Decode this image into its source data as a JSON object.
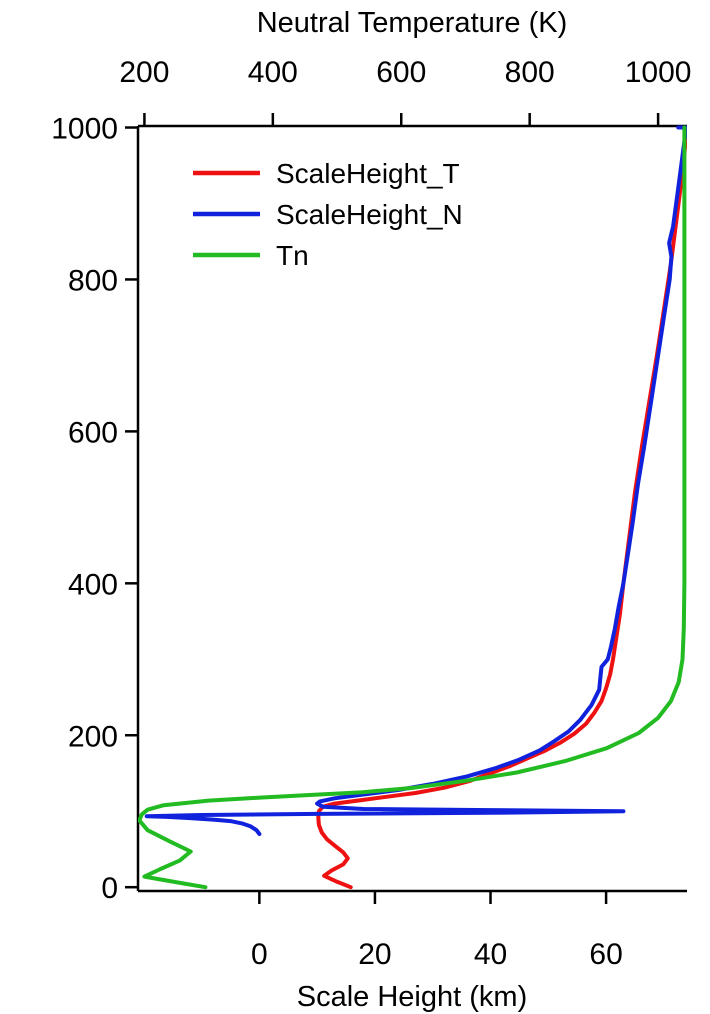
{
  "chart_data": {
    "type": "line",
    "title": "",
    "top_axis": {
      "label": "Neutral Temperature (K)",
      "range": [
        190,
        1045
      ],
      "ticks": [
        200,
        400,
        600,
        800,
        1000
      ]
    },
    "bottom_axis": {
      "label": "Scale Height (km)",
      "range": [
        -21,
        74
      ],
      "ticks": [
        0,
        20,
        40,
        60
      ]
    },
    "left_axis": {
      "label": "",
      "range": [
        -5,
        1002
      ],
      "ticks": [
        0,
        200,
        400,
        600,
        800,
        1000
      ]
    },
    "grid": false,
    "legend": {
      "position": "top-left"
    },
    "series": [
      {
        "name": "ScaleHeight_T",
        "color": "#ee1111",
        "x_axis": "bottom",
        "points": [
          [
            15.8,
            0
          ],
          [
            13.5,
            7
          ],
          [
            11.2,
            15
          ],
          [
            12.5,
            22
          ],
          [
            14.5,
            30
          ],
          [
            15.3,
            38
          ],
          [
            14.5,
            46
          ],
          [
            13.0,
            55
          ],
          [
            11.7,
            63
          ],
          [
            10.8,
            72
          ],
          [
            10.3,
            82
          ],
          [
            10.2,
            92
          ],
          [
            10.3,
            100
          ],
          [
            11.0,
            106
          ],
          [
            13.0,
            110
          ],
          [
            17.0,
            114
          ],
          [
            22.0,
            119
          ],
          [
            27.0,
            124
          ],
          [
            32.0,
            131
          ],
          [
            36.5,
            140
          ],
          [
            40.0,
            150
          ],
          [
            43.5,
            160
          ],
          [
            46.5,
            170
          ],
          [
            49.5,
            180
          ],
          [
            52.0,
            190
          ],
          [
            54.5,
            202
          ],
          [
            56.5,
            215
          ],
          [
            58.0,
            230
          ],
          [
            59.2,
            245
          ],
          [
            60.0,
            262
          ],
          [
            60.7,
            280
          ],
          [
            61.2,
            300
          ],
          [
            61.8,
            330
          ],
          [
            62.4,
            360
          ],
          [
            63.0,
            400
          ],
          [
            64.0,
            460
          ],
          [
            65.0,
            520
          ],
          [
            66.2,
            580
          ],
          [
            67.5,
            640
          ],
          [
            68.8,
            700
          ],
          [
            70.0,
            760
          ],
          [
            71.2,
            820
          ],
          [
            72.2,
            880
          ],
          [
            73.2,
            940
          ],
          [
            74.0,
            1000
          ]
        ]
      },
      {
        "name": "ScaleHeight_N",
        "color": "#1122dd",
        "x_axis": "bottom",
        "points": [
          [
            0,
            70
          ],
          [
            -0.5,
            75
          ],
          [
            -1.5,
            80
          ],
          [
            -3,
            84
          ],
          [
            -5,
            87
          ],
          [
            -8,
            89
          ],
          [
            -12,
            91
          ],
          [
            -16,
            92.5
          ],
          [
            -19.5,
            93.5
          ],
          [
            -10,
            95
          ],
          [
            10,
            96.5
          ],
          [
            40,
            98
          ],
          [
            63,
            100
          ],
          [
            40,
            101.5
          ],
          [
            18,
            103
          ],
          [
            11,
            106
          ],
          [
            10,
            110
          ],
          [
            10.5,
            113
          ],
          [
            13,
            117
          ],
          [
            18,
            122
          ],
          [
            24,
            128
          ],
          [
            30,
            136
          ],
          [
            36,
            146
          ],
          [
            41,
            157
          ],
          [
            45,
            168
          ],
          [
            48.5,
            180
          ],
          [
            51,
            192
          ],
          [
            53.5,
            205
          ],
          [
            55.5,
            220
          ],
          [
            57.5,
            240
          ],
          [
            58.8,
            260
          ],
          [
            59,
            275
          ],
          [
            59.2,
            290
          ],
          [
            60.3,
            300
          ],
          [
            60.8,
            315
          ],
          [
            61.5,
            340
          ],
          [
            62.2,
            370
          ],
          [
            63.0,
            400
          ],
          [
            63.8,
            440
          ],
          [
            64.6,
            480
          ],
          [
            65.5,
            530
          ],
          [
            66.6,
            580
          ],
          [
            67.8,
            640
          ],
          [
            69.0,
            700
          ],
          [
            70.2,
            760
          ],
          [
            71.0,
            800
          ],
          [
            71.3,
            830
          ],
          [
            70.9,
            848
          ],
          [
            71.6,
            870
          ],
          [
            72.3,
            910
          ],
          [
            73.0,
            950
          ],
          [
            73.6,
            985
          ],
          [
            74,
            1000
          ],
          [
            72.5,
            1000
          ]
        ]
      },
      {
        "name": "Tn",
        "color": "#22bb22",
        "x_axis": "top",
        "points": [
          [
            295,
            0
          ],
          [
            260,
            5
          ],
          [
            200,
            14
          ],
          [
            225,
            24
          ],
          [
            255,
            35
          ],
          [
            272,
            47
          ],
          [
            240,
            60
          ],
          [
            205,
            75
          ],
          [
            192,
            88
          ],
          [
            196,
            96
          ],
          [
            205,
            102
          ],
          [
            230,
            108
          ],
          [
            300,
            114
          ],
          [
            380,
            118
          ],
          [
            450,
            121
          ],
          [
            540,
            125
          ],
          [
            620,
            131
          ],
          [
            700,
            140
          ],
          [
            780,
            151
          ],
          [
            855,
            166
          ],
          [
            920,
            183
          ],
          [
            970,
            203
          ],
          [
            1000,
            223
          ],
          [
            1020,
            245
          ],
          [
            1032,
            270
          ],
          [
            1038,
            300
          ],
          [
            1040,
            340
          ],
          [
            1041,
            400
          ],
          [
            1041,
            600
          ],
          [
            1041,
            800
          ],
          [
            1041,
            1000
          ]
        ]
      }
    ]
  }
}
